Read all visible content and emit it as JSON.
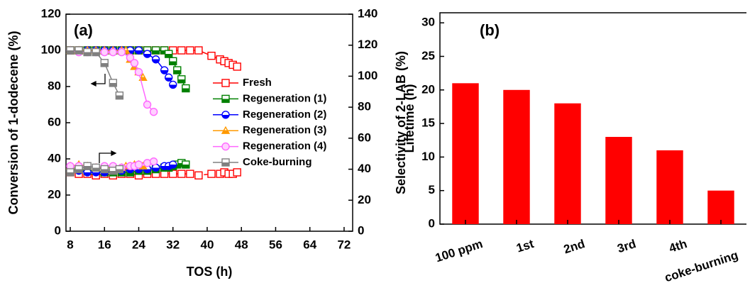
{
  "chart_data": [
    {
      "type": "line",
      "annotation": "(a)",
      "xlabel": "TOS (h)",
      "ylabel": "Conversion of 1-dodecene (%)",
      "y2label": "Selectivity of 2-LAB (%)",
      "xlim": [
        7,
        74
      ],
      "xticks": [
        8,
        16,
        24,
        32,
        40,
        48,
        56,
        64,
        72
      ],
      "ylim": [
        0,
        120
      ],
      "yticks": [
        0,
        20,
        40,
        60,
        80,
        100,
        120
      ],
      "y2lim": [
        0,
        140
      ],
      "y2ticks": [
        0,
        20,
        40,
        60,
        80,
        100,
        120,
        140
      ],
      "series": [
        {
          "name": "Fresh",
          "color": "#ff0000",
          "marker": "square",
          "fill": "open",
          "y2_dash": true,
          "x": [
            8,
            10,
            12,
            14,
            16,
            18,
            20,
            22,
            24,
            26,
            28,
            30,
            32,
            34,
            36,
            38,
            41,
            43,
            44,
            45,
            46,
            47
          ],
          "values": [
            100,
            100,
            100,
            100,
            100,
            100,
            100,
            100,
            100,
            100,
            100,
            100,
            100,
            100,
            100,
            100,
            97,
            95,
            94,
            93,
            92,
            91
          ],
          "y2_values": [
            38,
            37,
            37,
            36,
            37,
            36,
            37,
            37,
            36,
            37,
            37,
            37,
            37,
            37,
            37,
            36,
            37,
            37,
            38,
            37,
            37,
            38
          ]
        },
        {
          "name": "Regeneration (1)",
          "color": "#008000",
          "marker": "square",
          "fill": "half",
          "x": [
            8,
            10,
            12,
            14,
            16,
            18,
            20,
            22,
            24,
            26,
            28,
            30,
            31,
            32,
            33,
            34,
            35
          ],
          "values": [
            100,
            100,
            100,
            100,
            100,
            100,
            100,
            100,
            100,
            100,
            100,
            100,
            98,
            94,
            89,
            84,
            79
          ],
          "y2_values": [
            40,
            40,
            39,
            39,
            38,
            38,
            38,
            38,
            39,
            39,
            40,
            41,
            41,
            42,
            43,
            44,
            43
          ]
        },
        {
          "name": "Regeneration (2)",
          "color": "#0000ff",
          "marker": "circle",
          "fill": "half",
          "x": [
            8,
            10,
            12,
            14,
            16,
            18,
            20,
            22,
            24,
            26,
            28,
            30,
            31,
            32
          ],
          "values": [
            100,
            100,
            100,
            100,
            100,
            100,
            100,
            100,
            100,
            98,
            95,
            89,
            85,
            81
          ],
          "y2_values": [
            39,
            39,
            38,
            38,
            38,
            39,
            39,
            40,
            40,
            40,
            41,
            42,
            42,
            43
          ]
        },
        {
          "name": "Regeneration (3)",
          "color": "#ff9900",
          "marker": "triangle",
          "fill": "half",
          "x": [
            8,
            10,
            12,
            14,
            16,
            18,
            20,
            21,
            22,
            23,
            24,
            25
          ],
          "values": [
            100,
            100,
            100,
            100,
            100,
            100,
            100,
            100,
            95,
            91,
            88,
            85
          ],
          "y2_values": [
            42,
            43,
            42,
            41,
            41,
            41,
            41,
            42,
            42,
            43,
            43,
            42
          ]
        },
        {
          "name": "Regeneration (4)",
          "color": "#ff66ff",
          "marker": "circle",
          "fill": "light",
          "x": [
            8,
            10,
            12,
            14,
            16,
            18,
            20,
            22,
            23,
            24,
            26,
            27.5
          ],
          "values": [
            100,
            99,
            99,
            99,
            99,
            99,
            99,
            96,
            93,
            88,
            70,
            66
          ],
          "y2_values": [
            42,
            42,
            42,
            41,
            42,
            42,
            41,
            42,
            42,
            43,
            44,
            45
          ]
        },
        {
          "name": "Coke-burning",
          "color": "#808080",
          "marker": "square",
          "fill": "half",
          "x": [
            8,
            10,
            12,
            14,
            16,
            18,
            19.5
          ],
          "values": [
            100,
            100,
            99,
            99,
            93,
            82,
            75
          ],
          "y2_values": [
            38,
            40,
            42,
            41,
            40,
            39,
            40
          ]
        }
      ]
    },
    {
      "type": "bar",
      "annotation": "(b)",
      "ylabel": "Lifetime (h)",
      "color": "#ff0000",
      "categories": [
        "100 ppm",
        "1st",
        "2nd",
        "3rd",
        "4th",
        "coke-burning"
      ],
      "values": [
        21,
        20,
        18,
        13,
        11,
        5
      ],
      "ylim": [
        0,
        31.5
      ],
      "yticks": [
        0,
        5,
        10,
        15,
        20,
        25,
        30
      ]
    }
  ]
}
